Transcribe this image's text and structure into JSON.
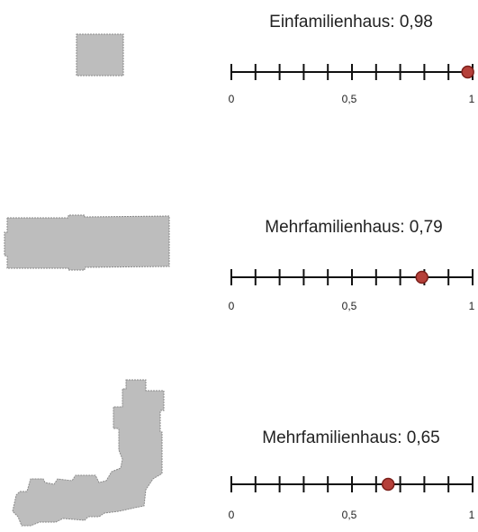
{
  "colors": {
    "shape_fill": "#bdbdbd",
    "shape_stroke": "#8a8a8a",
    "marker_fill": "#b5403a",
    "marker_stroke": "#7a1f1a",
    "scale_line": "#111111"
  },
  "scale": {
    "min": 0,
    "max": 1,
    "tick_step": 0.1,
    "labels": [
      "0",
      "0,5",
      "1"
    ]
  },
  "items": [
    {
      "shape_icon": "building-footprint-square",
      "title": "Einfamilienhaus: 0,98",
      "value": 0.98
    },
    {
      "shape_icon": "building-footprint-rectangle",
      "title": "Mehrfamilienhaus: 0,79",
      "value": 0.79
    },
    {
      "shape_icon": "building-footprint-curved",
      "title": "Mehrfamilienhaus: 0,65",
      "value": 0.65
    }
  ]
}
